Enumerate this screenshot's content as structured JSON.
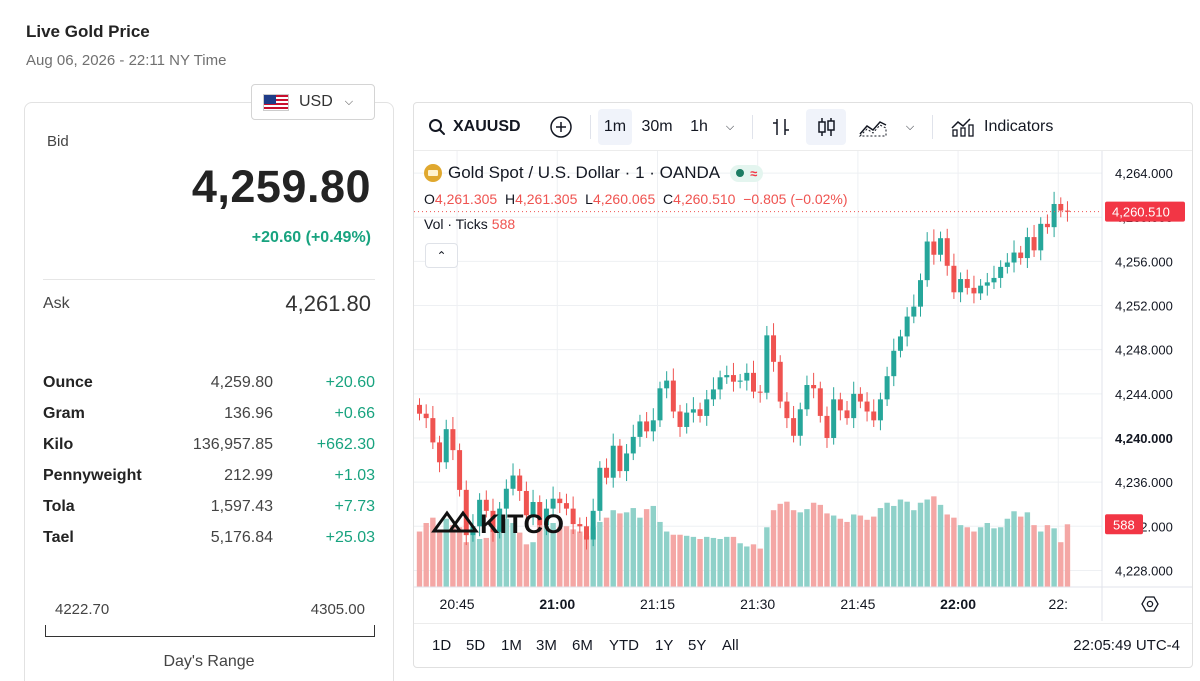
{
  "header": {
    "title": "Live Gold Price",
    "timestamp": "Aug 06, 2026 - 22:11 NY Time"
  },
  "price_panel": {
    "currency": "USD",
    "bid_label": "Bid",
    "bid_value": "4,259.80",
    "bid_change": "+20.60 (+0.49%)",
    "ask_label": "Ask",
    "ask_value": "4,261.80",
    "units": [
      {
        "name": "Ounce",
        "price": "4,259.80",
        "change": "+20.60"
      },
      {
        "name": "Gram",
        "price": "136.96",
        "change": "+0.66"
      },
      {
        "name": "Kilo",
        "price": "136,957.85",
        "change": "+662.30"
      },
      {
        "name": "Pennyweight",
        "price": "212.99",
        "change": "+1.03"
      },
      {
        "name": "Tola",
        "price": "1,597.43",
        "change": "+7.73"
      },
      {
        "name": "Tael",
        "price": "5,176.84",
        "change": "+25.03"
      }
    ],
    "day_range_low": "4222.70",
    "day_range_high": "4305.00",
    "day_range_label": "Day's Range"
  },
  "toolbar": {
    "symbol": "XAUUSD",
    "intervals": [
      "1m",
      "30m",
      "1h"
    ],
    "active_interval": "1m",
    "indicators_label": "Indicators"
  },
  "legend": {
    "title": "Gold Spot / U.S. Dollar · 1 · OANDA",
    "o_label": "O",
    "o": "4,261.305",
    "h_label": "H",
    "h": "4,261.305",
    "l_label": "L",
    "l": "4,260.065",
    "c_label": "C",
    "c": "4,260.510",
    "change": "−0.805 (−0.02%)",
    "vol_label": "Vol · Ticks",
    "vol_value": "588"
  },
  "watermark": "KITCO",
  "bottom_bar": {
    "ranges": [
      "1D",
      "5D",
      "1M",
      "3M",
      "6M",
      "YTD",
      "1Y",
      "5Y",
      "All"
    ],
    "clock": "22:05:49 UTC-4"
  },
  "colors": {
    "up": "#26a69a",
    "down": "#ef5350",
    "vol_up": "#8fd1c9",
    "vol_down": "#f4a7a5",
    "positive_text": "#18a37f"
  },
  "chart_data": {
    "type": "candlestick",
    "symbol": "XAUUSD",
    "interval": "1m",
    "y_ticks": [
      "4,264.000",
      "4,260.000",
      "4,256.000",
      "4,252.000",
      "4,248.000",
      "4,244.000",
      "4,240.000",
      "4,236.000",
      "4,232.000",
      "4,228.000"
    ],
    "y_tick_values": [
      4264,
      4260,
      4256,
      4252,
      4248,
      4244,
      4240,
      4236,
      4232,
      4228
    ],
    "ylim": [
      4226.5,
      4266
    ],
    "x_ticks": [
      "20:45",
      "21:00",
      "21:15",
      "21:30",
      "21:45",
      "22:00",
      "22:"
    ],
    "x_tick_minutes": [
      1245,
      1260,
      1275,
      1290,
      1305,
      1320,
      1335
    ],
    "x_start_minute": 1239,
    "last_price_label": "4,260.510",
    "last_price": 4260.51,
    "last_volume_label": "588",
    "volume_max": 900,
    "closes": [
      4242.2,
      4241.8,
      4239.6,
      4237.8,
      4240.8,
      4238.9,
      4235.3,
      4231.2,
      4232.0,
      4234.4,
      4233.4,
      4231.5,
      4233.6,
      4235.4,
      4236.6,
      4235.2,
      4233.0,
      4234.2,
      4232.1,
      4233.6,
      4234.5,
      4234.1,
      4233.6,
      4232.2,
      4232.0,
      4230.8,
      4233.4,
      4237.3,
      4236.4,
      4239.3,
      4237.0,
      4238.6,
      4240.1,
      4241.5,
      4240.6,
      4241.6,
      4244.5,
      4245.2,
      4242.4,
      4241.0,
      4242.3,
      4242.6,
      4242.0,
      4243.5,
      4244.4,
      4245.5,
      4245.7,
      4245.1,
      4245.2,
      4245.9,
      4244.2,
      4244.1,
      4249.3,
      4246.9,
      4243.3,
      4241.8,
      4240.2,
      4242.6,
      4244.8,
      4244.5,
      4242.0,
      4240.0,
      4243.5,
      4242.5,
      4241.8,
      4244.0,
      4243.3,
      4242.4,
      4241.6,
      4243.5,
      4245.6,
      4247.9,
      4249.2,
      4251.0,
      4251.9,
      4254.3,
      4257.8,
      4256.6,
      4258.1,
      4255.6,
      4253.2,
      4254.4,
      4253.6,
      4253.1,
      4253.8,
      4254.1,
      4254.5,
      4255.5,
      4255.9,
      4256.8,
      4256.3,
      4258.2,
      4257.0,
      4259.4,
      4259.1,
      4261.2,
      4260.6,
      4260.5
    ],
    "volumes": [
      520,
      600,
      650,
      520,
      640,
      580,
      560,
      420,
      510,
      450,
      460,
      520,
      560,
      640,
      600,
      510,
      400,
      420,
      580,
      570,
      600,
      560,
      570,
      540,
      520,
      480,
      560,
      610,
      650,
      720,
      690,
      700,
      740,
      650,
      730,
      760,
      610,
      520,
      490,
      490,
      480,
      470,
      450,
      470,
      460,
      450,
      470,
      470,
      410,
      380,
      400,
      360,
      560,
      720,
      780,
      800,
      720,
      700,
      730,
      790,
      770,
      690,
      670,
      640,
      610,
      680,
      670,
      630,
      660,
      740,
      790,
      760,
      820,
      800,
      720,
      790,
      820,
      850,
      770,
      680,
      650,
      580,
      560,
      520,
      560,
      600,
      550,
      560,
      640,
      710,
      660,
      700,
      580,
      520,
      580,
      550,
      420,
      588
    ]
  }
}
